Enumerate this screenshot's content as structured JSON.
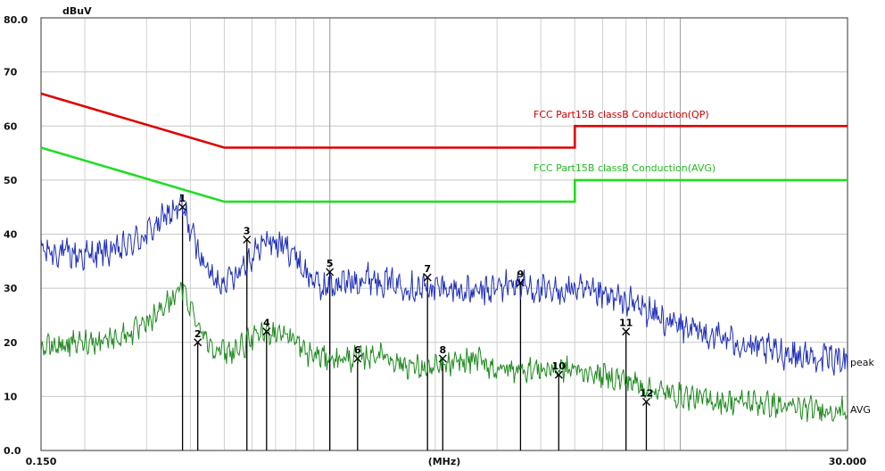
{
  "chart_data": {
    "type": "line",
    "xlabel": "(MHz)",
    "ylabel": "dBuV",
    "x_scale": "log",
    "xlim": [
      0.15,
      30
    ],
    "ylim": [
      0,
      80
    ],
    "x_tick_labels": [
      "0.150",
      "30.000"
    ],
    "y_ticks": [
      0,
      10,
      20,
      30,
      40,
      50,
      60,
      70,
      80
    ],
    "y_tick_labels": [
      "0.0",
      "10",
      "20",
      "30",
      "40",
      "50",
      "60",
      "70",
      "80.0"
    ],
    "grid": true,
    "limit_lines": [
      {
        "name": "FCC  Part15B classB Conduction(QP)",
        "color": "#e00000",
        "points": [
          [
            0.15,
            66
          ],
          [
            0.5,
            56
          ],
          [
            5,
            56
          ],
          [
            5,
            60
          ],
          [
            30,
            60
          ]
        ]
      },
      {
        "name": "FCC  Part15B classB Conduction(AVG)",
        "color": "#22dd22",
        "points": [
          [
            0.15,
            56
          ],
          [
            0.5,
            46
          ],
          [
            5,
            46
          ],
          [
            5,
            50
          ],
          [
            30,
            50
          ]
        ]
      }
    ],
    "series": [
      {
        "name": "peak",
        "color": "#1f2fb8",
        "points": [
          [
            0.15,
            37
          ],
          [
            0.2,
            36
          ],
          [
            0.25,
            37
          ],
          [
            0.3,
            40
          ],
          [
            0.35,
            44
          ],
          [
            0.38,
            45
          ],
          [
            0.42,
            37
          ],
          [
            0.47,
            31
          ],
          [
            0.52,
            32
          ],
          [
            0.58,
            35
          ],
          [
            0.62,
            37
          ],
          [
            0.66,
            39
          ],
          [
            0.72,
            38
          ],
          [
            0.78,
            37
          ],
          [
            0.85,
            33
          ],
          [
            0.95,
            30
          ],
          [
            1.1,
            31
          ],
          [
            1.3,
            32
          ],
          [
            1.5,
            31
          ],
          [
            1.8,
            30
          ],
          [
            2.2,
            30
          ],
          [
            2.6,
            29
          ],
          [
            3.0,
            30
          ],
          [
            3.3,
            31
          ],
          [
            3.8,
            30
          ],
          [
            4.3,
            29
          ],
          [
            4.9,
            30
          ],
          [
            5.5,
            29
          ],
          [
            6.5,
            28
          ],
          [
            7.5,
            27
          ],
          [
            9,
            24
          ],
          [
            11,
            22
          ],
          [
            13,
            21
          ],
          [
            16,
            19
          ],
          [
            20,
            18
          ],
          [
            25,
            17
          ],
          [
            30,
            17
          ]
        ]
      },
      {
        "name": "AVG",
        "color": "#1f8a1f",
        "points": [
          [
            0.15,
            19
          ],
          [
            0.2,
            20
          ],
          [
            0.25,
            21
          ],
          [
            0.3,
            23
          ],
          [
            0.34,
            27
          ],
          [
            0.38,
            30
          ],
          [
            0.41,
            25
          ],
          [
            0.45,
            20
          ],
          [
            0.5,
            18
          ],
          [
            0.55,
            19
          ],
          [
            0.62,
            21
          ],
          [
            0.66,
            22
          ],
          [
            0.72,
            22
          ],
          [
            0.78,
            21
          ],
          [
            0.85,
            18
          ],
          [
            1.0,
            17
          ],
          [
            1.2,
            17
          ],
          [
            1.4,
            18
          ],
          [
            1.6,
            16
          ],
          [
            1.9,
            15
          ],
          [
            2.3,
            16
          ],
          [
            2.6,
            17
          ],
          [
            3.0,
            15
          ],
          [
            3.5,
            15
          ],
          [
            4.3,
            15
          ],
          [
            5.0,
            15
          ],
          [
            5.8,
            14
          ],
          [
            7,
            13
          ],
          [
            8.5,
            11
          ],
          [
            10.5,
            10
          ],
          [
            13,
            9
          ],
          [
            16,
            9
          ],
          [
            20,
            8
          ],
          [
            25,
            7.5
          ],
          [
            30,
            7.5
          ]
        ]
      }
    ],
    "markers": [
      {
        "label": "1",
        "x": 0.38,
        "y": 45
      },
      {
        "label": "2",
        "x": 0.42,
        "y": 20
      },
      {
        "label": "3",
        "x": 0.58,
        "y": 39
      },
      {
        "label": "4",
        "x": 0.66,
        "y": 22
      },
      {
        "label": "5",
        "x": 1.0,
        "y": 33
      },
      {
        "label": "6",
        "x": 1.2,
        "y": 17
      },
      {
        "label": "7",
        "x": 1.9,
        "y": 32
      },
      {
        "label": "8",
        "x": 2.1,
        "y": 17
      },
      {
        "label": "9",
        "x": 3.5,
        "y": 31
      },
      {
        "label": "10",
        "x": 4.5,
        "y": 14
      },
      {
        "label": "11",
        "x": 7.0,
        "y": 22
      },
      {
        "label": "12",
        "x": 8.0,
        "y": 9
      }
    ]
  }
}
